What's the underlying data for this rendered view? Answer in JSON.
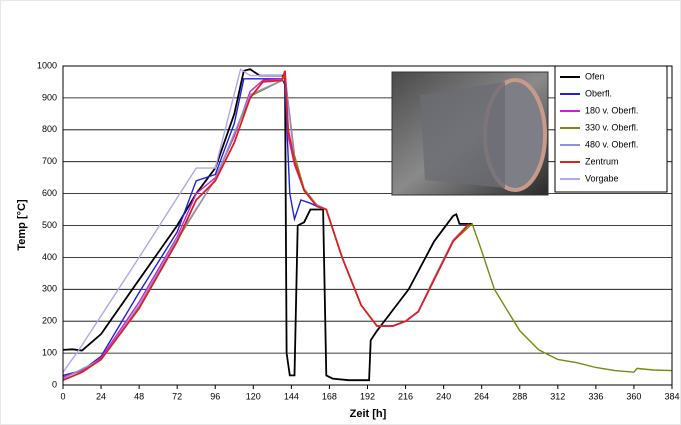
{
  "chart_data": {
    "type": "line",
    "xlabel": "Zeit [h]",
    "ylabel": "Temp [°C]",
    "xlim": [
      0,
      384
    ],
    "xticks": [
      0,
      24,
      48,
      72,
      96,
      120,
      144,
      168,
      192,
      216,
      240,
      264,
      288,
      312,
      336,
      360,
      384
    ],
    "ylim": [
      0,
      1000
    ],
    "yticks": [
      0,
      100,
      200,
      300,
      400,
      500,
      600,
      700,
      800,
      900,
      1000
    ],
    "grid": true,
    "legend": "upper right",
    "series": [
      {
        "name": "Ofen",
        "color": "#000000",
        "x": [
          0,
          6,
          12,
          24,
          48,
          72,
          84,
          96,
          108,
          114,
          118,
          124,
          140,
          141,
          143,
          146,
          148,
          152,
          156,
          164,
          166,
          170,
          180,
          193,
          194,
          198,
          218,
          234,
          246,
          248,
          250,
          258
        ],
        "values": [
          110,
          112,
          108,
          160,
          330,
          500,
          600,
          680,
          850,
          985,
          990,
          970,
          970,
          100,
          30,
          30,
          500,
          510,
          550,
          550,
          30,
          20,
          15,
          15,
          140,
          170,
          300,
          450,
          530,
          535,
          505,
          505
        ]
      },
      {
        "name": "Oberfl.",
        "color": "#1f1fe0",
        "x": [
          0,
          12,
          24,
          48,
          72,
          84,
          96,
          108,
          114,
          120,
          138,
          140,
          143,
          146,
          150,
          156,
          160,
          166,
          176,
          188,
          198,
          208,
          216,
          224,
          234,
          246,
          256
        ],
        "values": [
          30,
          45,
          90,
          290,
          480,
          640,
          660,
          820,
          960,
          960,
          960,
          940,
          600,
          520,
          580,
          570,
          560,
          550,
          400,
          250,
          185,
          185,
          200,
          230,
          330,
          450,
          505
        ]
      },
      {
        "name": "180 v. Oberfl.",
        "color": "#d020d0",
        "x": [
          0,
          12,
          24,
          48,
          72,
          84,
          96,
          108,
          118,
          126,
          138,
          140,
          142,
          146,
          152,
          160,
          166,
          176,
          188,
          198,
          208,
          216,
          224,
          234,
          246,
          256
        ],
        "values": [
          25,
          45,
          85,
          260,
          465,
          600,
          650,
          780,
          920,
          955,
          960,
          975,
          780,
          690,
          610,
          565,
          550,
          400,
          250,
          185,
          185,
          200,
          230,
          330,
          450,
          505
        ]
      },
      {
        "name": "330 v. Oberfl.",
        "color": "#7a8a10",
        "x": [
          0,
          24,
          48,
          72,
          96,
          118,
          138,
          140,
          146,
          152,
          160,
          166,
          176,
          188,
          198,
          208,
          216,
          224,
          234,
          246,
          258,
          264,
          272,
          288,
          300,
          312,
          324,
          336,
          348,
          360,
          362,
          372,
          384
        ],
        "values": [
          20,
          80,
          245,
          455,
          645,
          905,
          955,
          970,
          720,
          615,
          565,
          550,
          400,
          250,
          185,
          185,
          200,
          230,
          330,
          450,
          505,
          420,
          300,
          170,
          110,
          80,
          70,
          55,
          45,
          40,
          52,
          47,
          45
        ]
      },
      {
        "name": "480 v. Oberfl.",
        "color": "#9090e0",
        "x": [
          0,
          24,
          48,
          72,
          96,
          118,
          138,
          140,
          146,
          152,
          160,
          166,
          176,
          188,
          198,
          208,
          216,
          224,
          234,
          246,
          256
        ],
        "values": [
          20,
          80,
          250,
          460,
          645,
          910,
          955,
          975,
          700,
          612,
          565,
          550,
          400,
          250,
          185,
          185,
          200,
          230,
          335,
          455,
          505
        ]
      },
      {
        "name": "Zentrum",
        "color": "#e02020",
        "x": [
          0,
          12,
          24,
          48,
          72,
          84,
          96,
          108,
          118,
          126,
          138,
          140,
          142,
          146,
          152,
          160,
          166,
          176,
          188,
          198,
          208,
          216,
          224,
          234,
          246,
          256
        ],
        "values": [
          15,
          40,
          80,
          240,
          450,
          580,
          640,
          760,
          900,
          950,
          955,
          985,
          800,
          700,
          610,
          560,
          550,
          400,
          250,
          185,
          185,
          200,
          230,
          330,
          450,
          505
        ]
      },
      {
        "name": "Vorgabe",
        "color": "#b0a8e8",
        "x": [
          0,
          10,
          48,
          84,
          96,
          112,
          118,
          138
        ],
        "values": [
          40,
          110,
          400,
          680,
          680,
          990,
          970,
          970
        ]
      }
    ]
  }
}
